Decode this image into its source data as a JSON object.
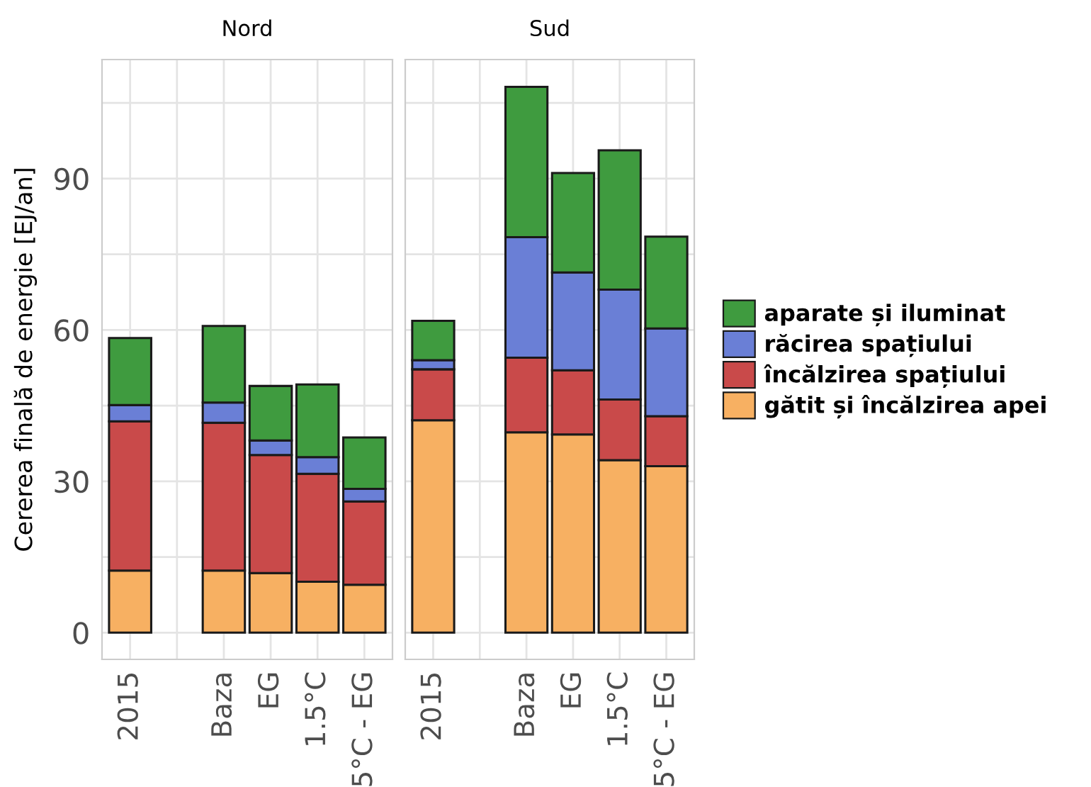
{
  "chart_data": [
    {
      "type": "bar",
      "stacked": true,
      "title": "Nord",
      "ylabel": "Cererea finală de energie [EJ/an]",
      "categories": [
        "2015",
        null,
        "Baza",
        "EG",
        "1.5°C",
        "5°C - EG"
      ],
      "series": [
        {
          "color": "#f7b062",
          "values": [
            12.3,
            null,
            12.3,
            11.8,
            10.1,
            9.5
          ]
        },
        {
          "color": "#c94a4a",
          "values": [
            29.6,
            null,
            29.3,
            23.4,
            21.4,
            16.5
          ]
        },
        {
          "color": "#6a7fd6",
          "values": [
            3.2,
            null,
            4.0,
            2.9,
            3.3,
            2.5
          ]
        },
        {
          "color": "#3f9b3f",
          "values": [
            13.3,
            null,
            15.2,
            10.8,
            14.4,
            10.2
          ]
        }
      ],
      "ylim": [
        -5.3,
        113.6
      ],
      "yticks": [
        0,
        {
          "value": 15,
          "label": null
        },
        30,
        {
          "value": 45,
          "label": null
        },
        60,
        {
          "value": 75,
          "label": null
        },
        90,
        {
          "value": 105,
          "label": null
        }
      ],
      "grid": true
    },
    {
      "type": "bar",
      "stacked": true,
      "title": "Sud",
      "categories": [
        "2015",
        null,
        "Baza",
        "EG",
        "1.5°C",
        "5°C - EG"
      ],
      "series": [
        {
          "name": "gătit și încălzirea apei",
          "color": "#f7b062",
          "values": [
            42.1,
            null,
            39.7,
            39.3,
            34.2,
            33.0
          ]
        },
        {
          "name": "încălzirea spațiului",
          "color": "#c94a4a",
          "values": [
            10.1,
            null,
            14.8,
            12.7,
            12.0,
            9.9
          ]
        },
        {
          "name": "răcirea spațiului",
          "color": "#6a7fd6",
          "values": [
            1.8,
            null,
            23.9,
            19.4,
            21.8,
            17.4
          ]
        },
        {
          "name": "aparate și iluminat",
          "color": "#3f9b3f",
          "values": [
            7.8,
            null,
            29.8,
            19.7,
            27.6,
            18.2
          ]
        }
      ],
      "ylim": [
        -5.3,
        113.6
      ],
      "yticks": [
        0,
        {
          "value": 15,
          "label": null
        },
        30,
        {
          "value": 45,
          "label": null
        },
        60,
        {
          "value": 75,
          "label": null
        },
        90,
        {
          "value": 105,
          "label": null
        }
      ],
      "grid": true,
      "legend": "right",
      "tick_labels": "x"
    }
  ]
}
